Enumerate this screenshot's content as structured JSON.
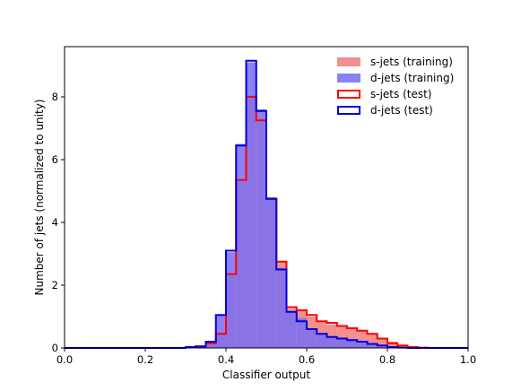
{
  "chart_data": {
    "type": "histogram",
    "xlabel": "Classifier output",
    "ylabel": "Number of jets (normalized to unity)",
    "xlim": [
      0.0,
      1.0
    ],
    "ylim": [
      0,
      9.6
    ],
    "x_ticks": [
      "0.0",
      "0.2",
      "0.4",
      "0.6",
      "0.8",
      "1.0"
    ],
    "y_ticks": [
      "0",
      "2",
      "4",
      "6",
      "8"
    ],
    "bin_width": 0.025,
    "bin_edges": [
      0.0,
      0.025,
      0.05,
      0.075,
      0.1,
      0.125,
      0.15,
      0.175,
      0.2,
      0.225,
      0.25,
      0.275,
      0.3,
      0.325,
      0.35,
      0.375,
      0.4,
      0.425,
      0.45,
      0.475,
      0.5,
      0.525,
      0.55,
      0.575,
      0.6,
      0.625,
      0.65,
      0.675,
      0.7,
      0.725,
      0.75,
      0.775,
      0.8,
      0.825,
      0.85,
      0.875,
      0.9,
      0.925,
      0.95,
      0.975,
      1.0
    ],
    "legend_position": "top-right",
    "series": [
      {
        "name": "s-jets (training)",
        "style": "filled",
        "color": "#f08080",
        "values": [
          0,
          0,
          0,
          0,
          0,
          0,
          0,
          0,
          0,
          0,
          0,
          0,
          0.03,
          0.05,
          0.15,
          0.45,
          2.3,
          5.3,
          8.05,
          7.3,
          4.8,
          2.75,
          1.25,
          1.2,
          1.0,
          0.85,
          0.75,
          0.68,
          0.6,
          0.55,
          0.45,
          0.3,
          0.2,
          0.1,
          0.05,
          0.02,
          0,
          0,
          0,
          0
        ]
      },
      {
        "name": "d-jets (training)",
        "style": "filled",
        "color": "#7b6ff2",
        "values": [
          0,
          0,
          0,
          0,
          0,
          0,
          0,
          0,
          0,
          0,
          0,
          0,
          0.03,
          0.05,
          0.15,
          1.05,
          3.05,
          6.5,
          9.1,
          7.6,
          4.8,
          2.55,
          1.15,
          0.95,
          0.6,
          0.45,
          0.35,
          0.3,
          0.28,
          0.23,
          0.15,
          0.08,
          0.03,
          0.01,
          0,
          0,
          0,
          0,
          0,
          0
        ]
      },
      {
        "name": "s-jets (test)",
        "style": "step",
        "color": "#ff0000",
        "values": [
          0,
          0,
          0,
          0,
          0,
          0,
          0,
          0,
          0,
          0,
          0,
          0,
          0.03,
          0.05,
          0.15,
          0.45,
          2.35,
          5.35,
          8.0,
          7.25,
          4.75,
          2.75,
          1.3,
          1.2,
          1.05,
          0.85,
          0.8,
          0.7,
          0.63,
          0.55,
          0.45,
          0.3,
          0.15,
          0.08,
          0.03,
          0.01,
          0,
          0,
          0,
          0
        ]
      },
      {
        "name": "d-jets (test)",
        "style": "step",
        "color": "#0000dd",
        "values": [
          0,
          0,
          0,
          0,
          0,
          0,
          0,
          0,
          0,
          0,
          0,
          0,
          0.03,
          0.05,
          0.2,
          1.05,
          3.1,
          6.45,
          9.15,
          7.55,
          4.75,
          2.5,
          1.15,
          0.85,
          0.6,
          0.45,
          0.35,
          0.3,
          0.25,
          0.2,
          0.13,
          0.08,
          0.03,
          0.01,
          0,
          0,
          0,
          0,
          0,
          0
        ]
      }
    ]
  }
}
